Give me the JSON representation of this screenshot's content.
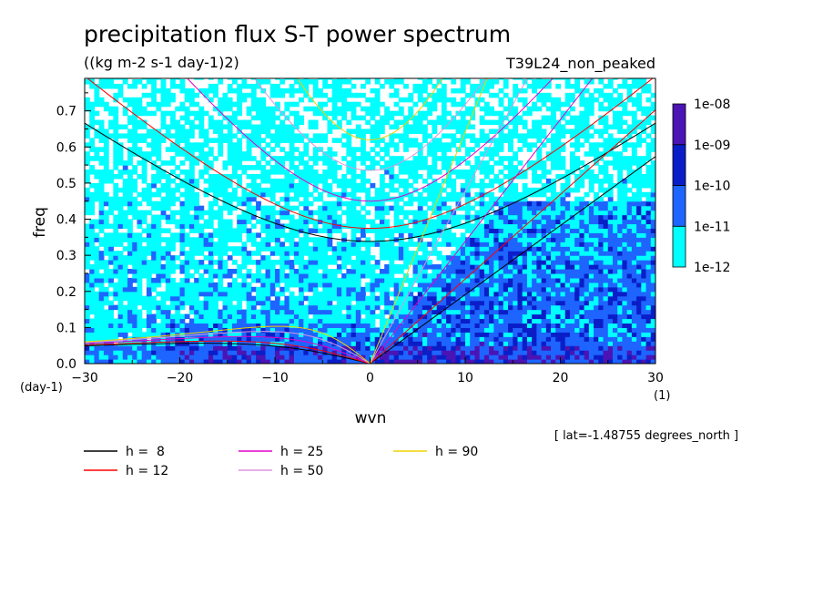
{
  "chart_data": {
    "type": "heatmap",
    "title": "precipitation flux S-T power spectrum",
    "subtitle": "((kg m-2 s-1 day-1)2)",
    "experiment": "T39L24_non_peaked",
    "xlabel": "wvn",
    "ylabel": "freq",
    "x_unit": "(1)",
    "y_unit": "(day-1)",
    "xlim": [
      -30,
      30
    ],
    "ylim": [
      0,
      0.79
    ],
    "x_ticks": [
      "-30",
      "-20",
      "-10",
      "0",
      "10",
      "20",
      "30"
    ],
    "y_ticks": [
      "0.0",
      "0.1",
      "0.2",
      "0.3",
      "0.4",
      "0.5",
      "0.6",
      "0.7"
    ],
    "colorbar": {
      "levels": [
        "1e-12",
        "1e-11",
        "1e-10",
        "1e-09",
        "1e-08"
      ],
      "colors": [
        "#00ffff",
        "#1e64ff",
        "#0a1ec8",
        "#4b14b4"
      ]
    },
    "latitude_note": "[ lat=-1.48755 degrees_north ]",
    "series": [
      {
        "name": "h =  8",
        "h": 8,
        "color": "#000000"
      },
      {
        "name": "h = 12",
        "h": 12,
        "color": "#ff0000"
      },
      {
        "name": "h = 25",
        "h": 25,
        "color": "#e600c8"
      },
      {
        "name": "h = 50",
        "h": 50,
        "color": "#dc96dc"
      },
      {
        "name": "h = 90",
        "h": 90,
        "color": "#f0d200"
      }
    ]
  }
}
